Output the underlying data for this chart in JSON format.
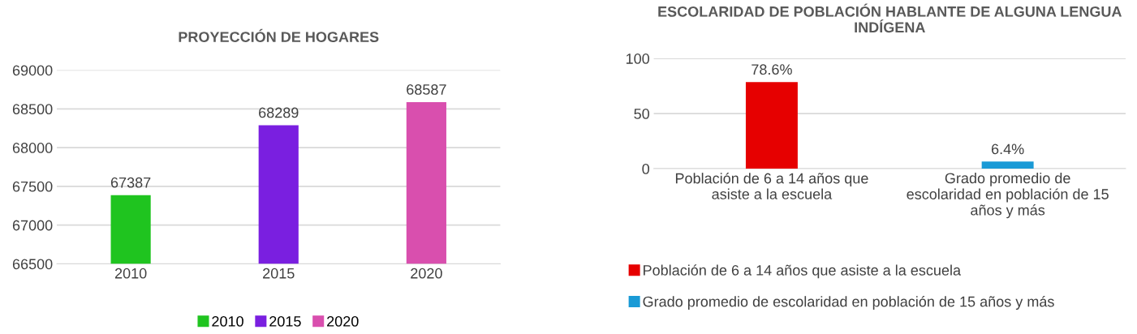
{
  "chart_data": [
    {
      "type": "bar",
      "title": "PROYECCIÓN DE HOGARES",
      "categories": [
        "2010",
        "2015",
        "2020"
      ],
      "series": [
        {
          "name": "2010",
          "color": "#1fc41f",
          "values": [
            67387,
            null,
            null
          ]
        },
        {
          "name": "2015",
          "color": "#7a1fe0",
          "values": [
            null,
            68289,
            null
          ]
        },
        {
          "name": "2020",
          "color": "#d94fae",
          "values": [
            null,
            null,
            68587
          ]
        }
      ],
      "ylim": [
        66500,
        69000
      ],
      "yticks": [
        66500,
        67000,
        67500,
        68000,
        68500,
        69000
      ],
      "grid": "y",
      "legend": "bottom",
      "data_labels": true
    },
    {
      "type": "bar",
      "title": "ESCOLARIDAD DE POBLACIÓN HABLANTE DE ALGUNA LENGUA INDÍGENA",
      "categories": [
        "Población de 6 a 14 años que\nasiste a la escuela",
        "Grado promedio de\nescolaridad en población de 15\naños y más"
      ],
      "series": [
        {
          "name": "Población de 6 a 14 años que asiste a la escuela",
          "color": "#e60000",
          "values": [
            78.6,
            null
          ],
          "value_labels": [
            "78.6%",
            null
          ]
        },
        {
          "name": "Grado promedio de escolaridad en población de 15 años y más",
          "color": "#1a9ad6",
          "values": [
            null,
            6.4
          ],
          "value_labels": [
            null,
            "6.4%"
          ]
        }
      ],
      "ylim": [
        0,
        100
      ],
      "yticks": [
        0,
        50,
        100
      ],
      "grid": "y",
      "legend": "bottom left"
    }
  ]
}
